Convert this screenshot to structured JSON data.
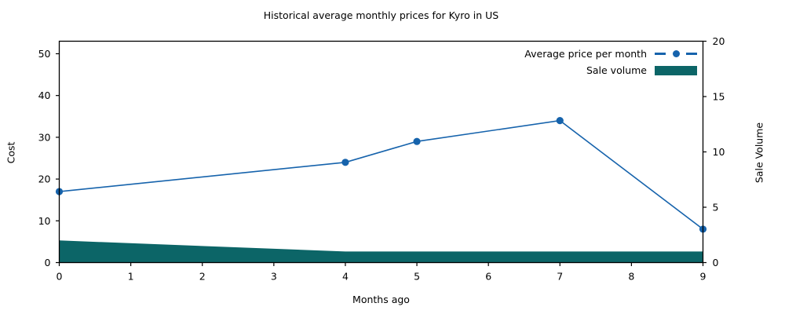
{
  "chart_data": {
    "type": "line+area",
    "title": "Historical average monthly prices for Kyro in US",
    "xlabel": "Months ago",
    "ylabel_left": "Cost",
    "ylabel_right": "Sale Volume",
    "x": [
      0,
      4,
      5,
      7,
      9
    ],
    "series": [
      {
        "name": "Average price per month",
        "type": "line",
        "axis": "left",
        "color": "#1663ac",
        "marker": "circle",
        "values": [
          17,
          24,
          29,
          34,
          8
        ]
      },
      {
        "name": "Sale volume",
        "type": "area",
        "axis": "right",
        "color": "#0c6567",
        "values": [
          2,
          1,
          1,
          1,
          1
        ]
      }
    ],
    "xlim": [
      0,
      9
    ],
    "ylim_left": [
      0,
      53
    ],
    "ylim_right": [
      0,
      20
    ],
    "xticks": [
      0,
      1,
      2,
      3,
      4,
      5,
      6,
      7,
      8,
      9
    ],
    "yticks_left": [
      0,
      10,
      20,
      30,
      40,
      50
    ],
    "yticks_right": [
      0,
      5,
      10,
      15,
      20
    ],
    "legend": {
      "position": "upper-right",
      "frame": false
    },
    "grid": false,
    "background": "#ffffff",
    "text_color": "#000000",
    "spine_color": "#000000"
  }
}
